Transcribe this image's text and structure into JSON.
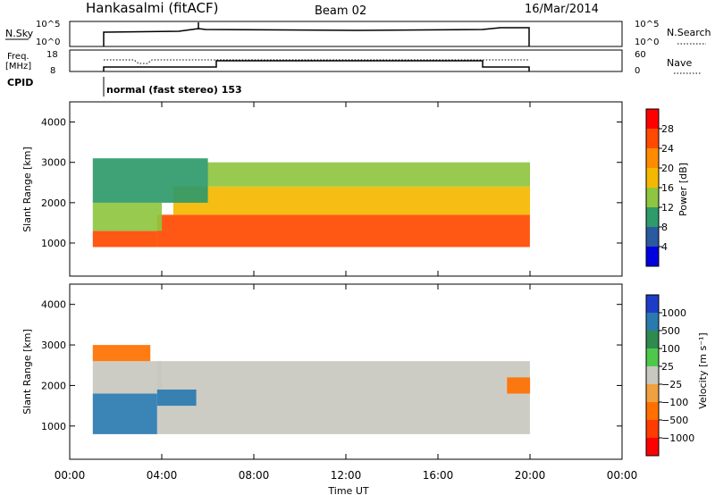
{
  "header": {
    "station": "Hankasalmi (fitACF)",
    "beam": "Beam 02",
    "date": "16/Mar/2014"
  },
  "panels": {
    "nsky": {
      "label": "N.Sky",
      "right_label": "N.Search",
      "left_ticks": [
        "10^5",
        "10^0"
      ],
      "right_ticks": [
        "10^5",
        "10^0"
      ]
    },
    "freq": {
      "label_top": "Freq.",
      "label_bottom": "[MHz]",
      "right_label": "Nave",
      "left_ticks": [
        "18",
        "8"
      ],
      "right_ticks": [
        "60",
        "0"
      ]
    },
    "cpid": {
      "label": "CPID",
      "mode": "normal (fast stereo) 153"
    }
  },
  "colorbars": {
    "power": {
      "label": "Power [dB]",
      "ticks": [
        "28",
        "24",
        "20",
        "16",
        "12",
        "8",
        "4"
      ],
      "colors": [
        "#ff0000",
        "#ff4a00",
        "#ff8c00",
        "#f5b800",
        "#8ec63f",
        "#2f9a6a",
        "#2a5aa0",
        "#0000e0"
      ]
    },
    "velocity": {
      "label": "Velocity [m s⁻¹]",
      "ticks": [
        "1000",
        "500",
        "100",
        "25",
        "−25",
        "−100",
        "−500",
        "−1000"
      ],
      "colors": [
        "#1e3cc8",
        "#2a7ab0",
        "#2f8a50",
        "#4ec84a",
        "#c8c8c0",
        "#f0a040",
        "#ff7000",
        "#ff3c00",
        "#ff0000"
      ]
    }
  },
  "chart_data": [
    {
      "type": "heatmap",
      "title": "Power",
      "ylabel": "Slant Range [km]",
      "xlabel": "Time UT",
      "x_ticks": [
        "00:00",
        "04:00",
        "08:00",
        "12:00",
        "16:00",
        "20:00",
        "00:00"
      ],
      "y_ticks": [
        1000,
        2000,
        3000,
        4000
      ],
      "xlim_hours": [
        0,
        24
      ],
      "ylim_km": [
        180,
        4500
      ],
      "regions": [
        {
          "t0": 1.0,
          "t1": 3.8,
          "r0": 900,
          "r1": 1300,
          "value": 28
        },
        {
          "t0": 3.8,
          "t1": 20.0,
          "r0": 900,
          "r1": 1700,
          "value": 26
        },
        {
          "t0": 4.5,
          "t1": 20.0,
          "r0": 1700,
          "r1": 2400,
          "value": 20
        },
        {
          "t0": 1.0,
          "t1": 4.0,
          "r0": 1300,
          "r1": 2000,
          "value": 14
        },
        {
          "t0": 6.0,
          "t1": 20.0,
          "r0": 2400,
          "r1": 3000,
          "value": 16
        },
        {
          "t0": 1.0,
          "t1": 6.0,
          "r0": 2000,
          "r1": 3100,
          "value": 12
        }
      ]
    },
    {
      "type": "heatmap",
      "title": "Velocity",
      "ylabel": "Slant Range [km]",
      "xlabel": "Time UT",
      "x_ticks": [
        "00:00",
        "04:00",
        "08:00",
        "12:00",
        "16:00",
        "20:00",
        "00:00"
      ],
      "y_ticks": [
        1000,
        2000,
        3000,
        4000
      ],
      "xlim_hours": [
        0,
        24
      ],
      "ylim_km": [
        180,
        4500
      ],
      "regions": [
        {
          "t0": 1.0,
          "t1": 3.8,
          "r0": 800,
          "r1": 1800,
          "value": 300
        },
        {
          "t0": 3.8,
          "t1": 20.0,
          "r0": 800,
          "r1": 2600,
          "value": 0
        },
        {
          "t0": 1.0,
          "t1": 4.0,
          "r0": 1800,
          "r1": 2600,
          "value": 0
        },
        {
          "t0": 1.0,
          "t1": 3.5,
          "r0": 2600,
          "r1": 3000,
          "value": -300
        },
        {
          "t0": 19.0,
          "t1": 20.0,
          "r0": 1800,
          "r1": 2200,
          "value": -300
        },
        {
          "t0": 3.8,
          "t1": 5.5,
          "r0": 1500,
          "r1": 1900,
          "value": 300
        }
      ]
    }
  ]
}
